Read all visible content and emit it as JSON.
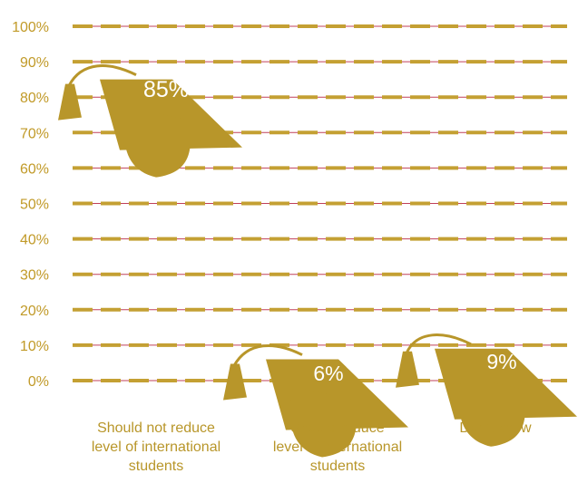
{
  "chart_data": {
    "type": "bar",
    "style": "graduation-cap pictograph",
    "categories": [
      "Should not reduce\nlevel of international\nstudents",
      "Should reduce\nlevel of international\nstudents",
      "Don’t know"
    ],
    "values": [
      85,
      6,
      9
    ],
    "value_labels": [
      "85%",
      "6%",
      "9%"
    ],
    "y_ticks": [
      "0%",
      "10%",
      "20%",
      "30%",
      "40%",
      "50%",
      "60%",
      "70%",
      "80%",
      "90%",
      "100%"
    ],
    "ylim": [
      0,
      100
    ],
    "grid": true,
    "colors": {
      "cap": "#b8962a",
      "tick_text": "#c19a28",
      "grid_dash": "#c4a033",
      "grid_line": "#c0405a",
      "value_text": "#ffffff"
    }
  }
}
